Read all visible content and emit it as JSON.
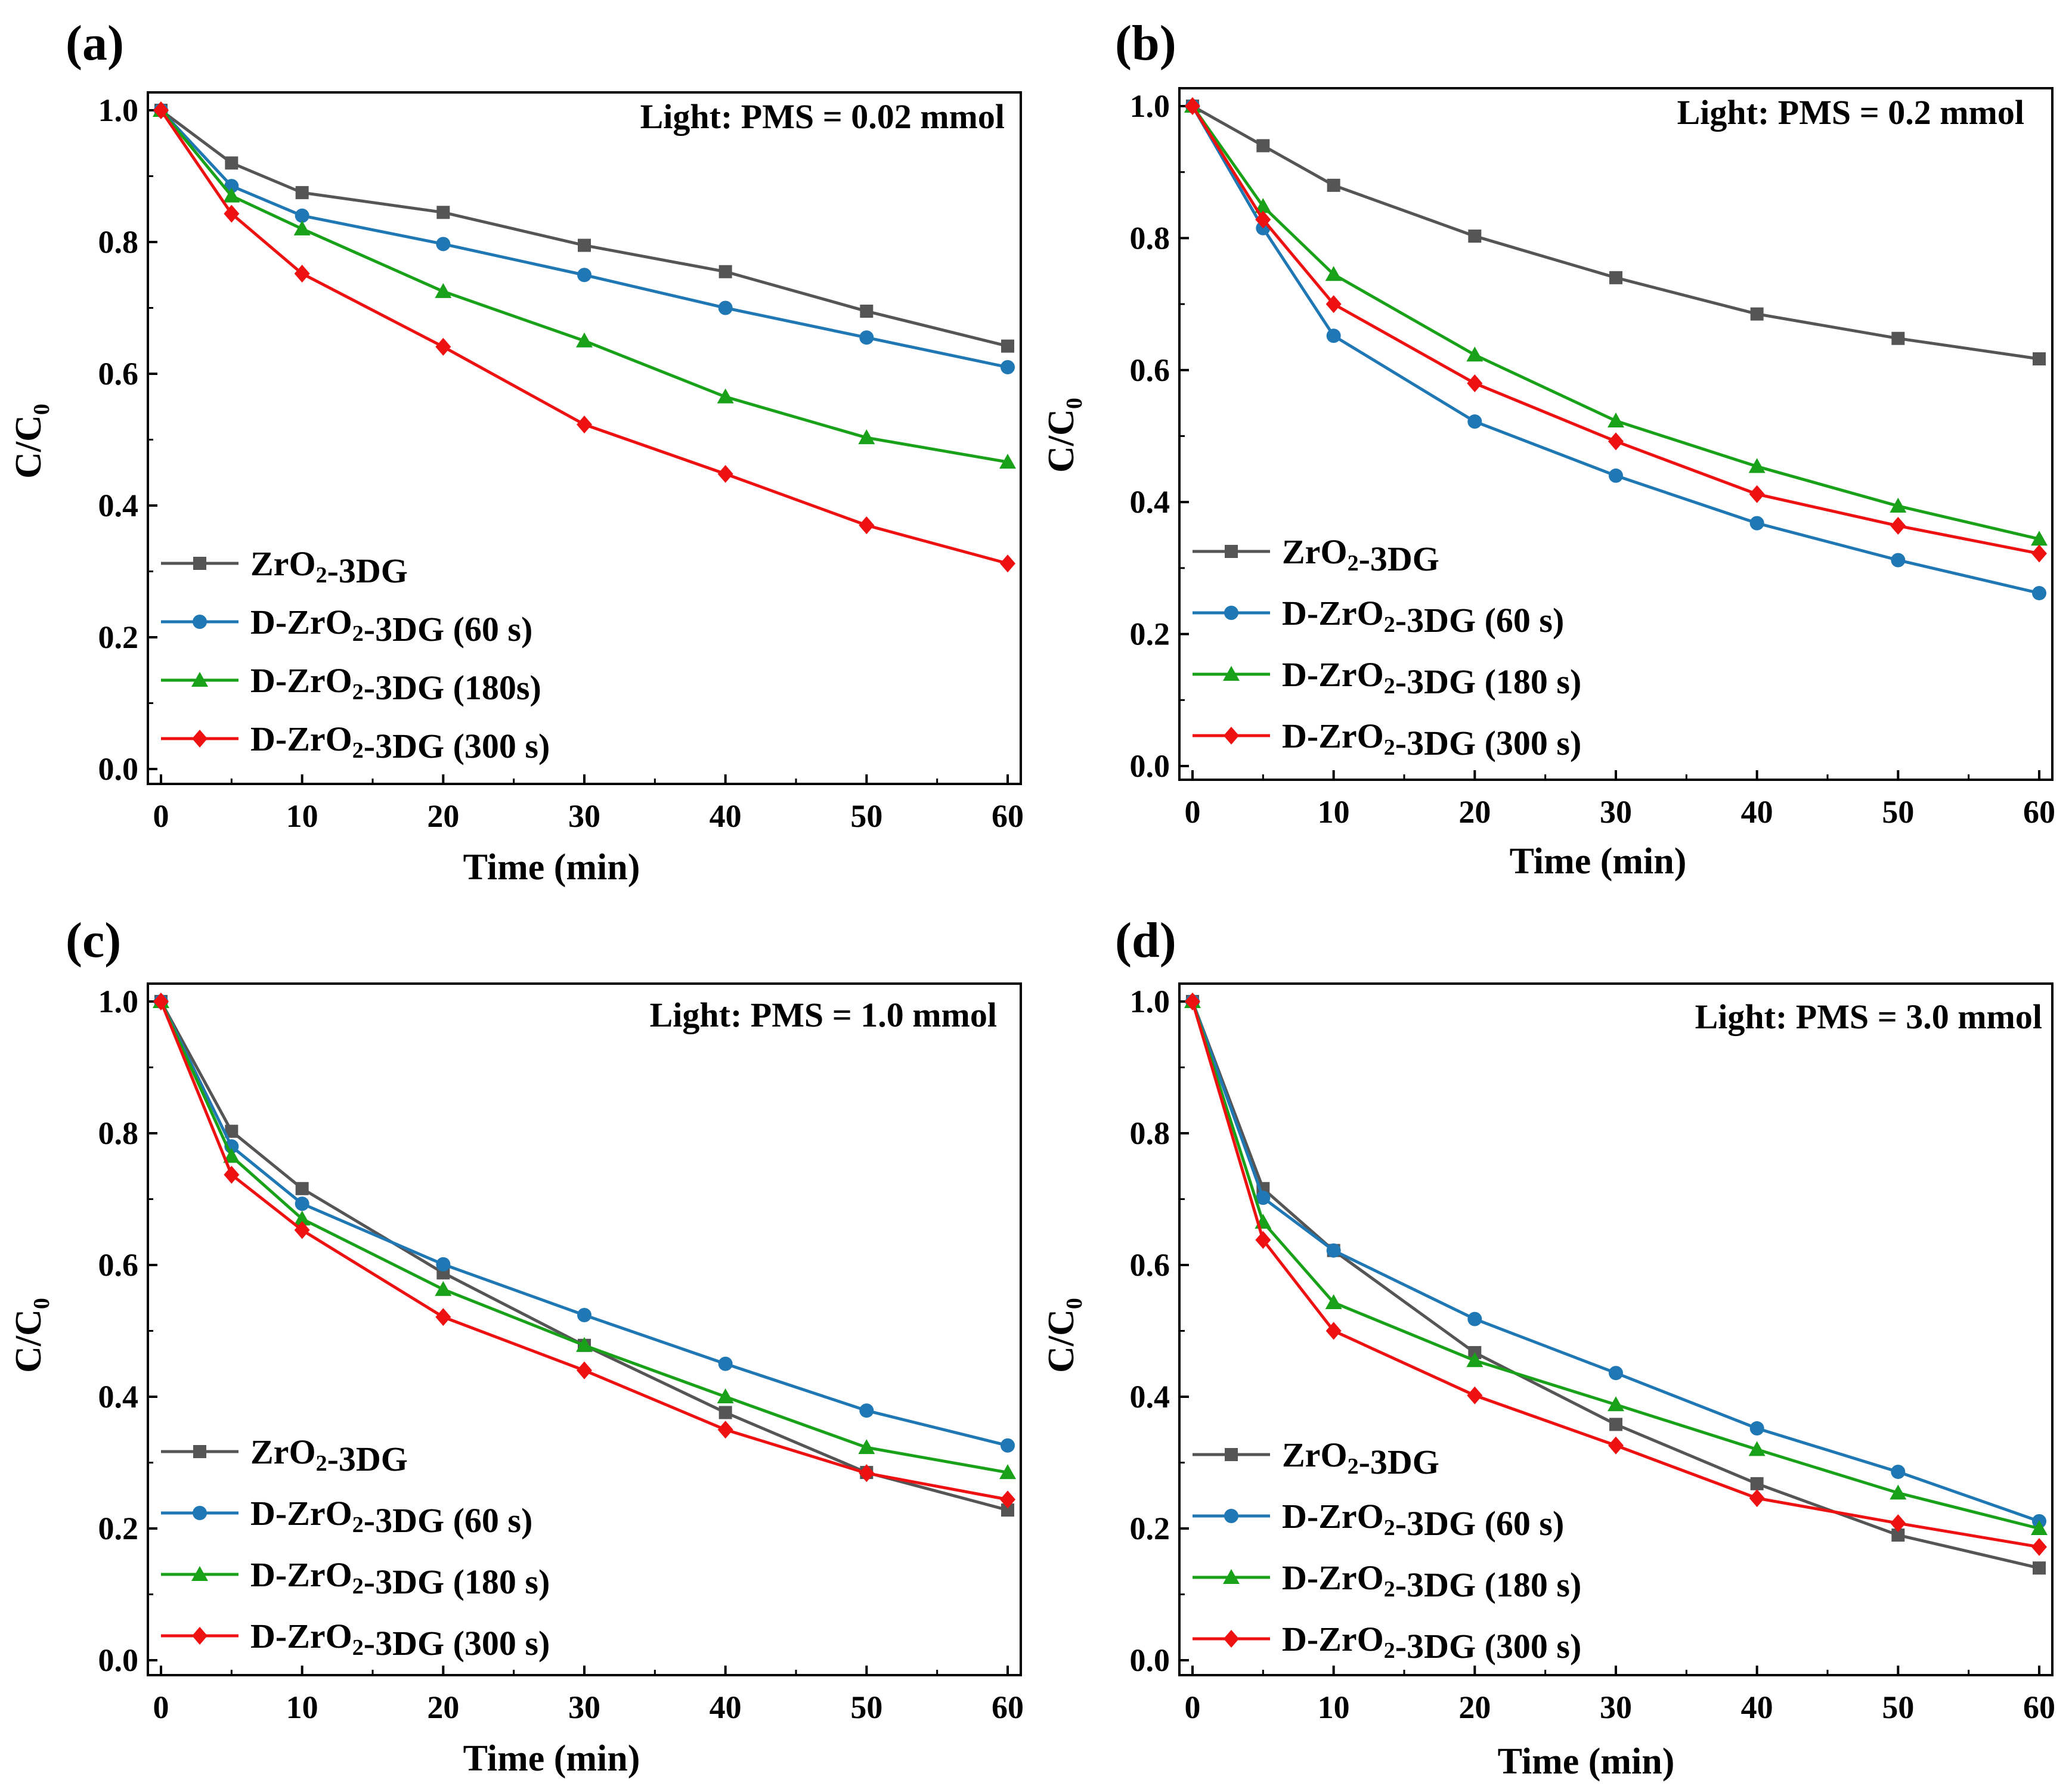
{
  "chart_data": [
    {
      "panel": "(a)",
      "type": "line",
      "annotation": "Light: PMS = 0.02 mmol",
      "xlabel": "Time (min)",
      "ylabel": "C/C0",
      "xlim": [
        0,
        60
      ],
      "ylim": [
        0.0,
        1.0
      ],
      "xticks": [
        "0",
        "10",
        "20",
        "30",
        "40",
        "50",
        "60"
      ],
      "yticks": [
        "0.0",
        "0.2",
        "0.4",
        "0.6",
        "0.8",
        "1.0"
      ],
      "x": [
        0,
        5,
        10,
        20,
        30,
        40,
        50,
        60
      ],
      "legend_position": "bottom-left",
      "series": [
        {
          "name": "ZrO2-3DG",
          "color": "#555555",
          "marker": "square",
          "values": [
            1.0,
            0.92,
            0.875,
            0.845,
            0.795,
            0.755,
            0.695,
            0.642
          ]
        },
        {
          "name": "D-ZrO2-3DG (60 s)",
          "color": "#1f77b4",
          "marker": "circle",
          "values": [
            1.0,
            0.885,
            0.84,
            0.797,
            0.75,
            0.7,
            0.655,
            0.61
          ]
        },
        {
          "name": "D-ZrO2-3DG (180s)",
          "color": "#1aa11a",
          "marker": "triangle",
          "values": [
            1.0,
            0.87,
            0.82,
            0.725,
            0.65,
            0.565,
            0.503,
            0.466
          ]
        },
        {
          "name": "D-ZrO2-3DG (300 s)",
          "color": "#ee1111",
          "marker": "diamond",
          "values": [
            1.0,
            0.843,
            0.752,
            0.641,
            0.523,
            0.448,
            0.37,
            0.312
          ]
        }
      ]
    },
    {
      "panel": "(b)",
      "type": "line",
      "annotation": "Light: PMS = 0.2 mmol",
      "xlabel": "Time (min)",
      "ylabel": "C/C0",
      "xlim": [
        0,
        60
      ],
      "ylim": [
        0.0,
        1.0
      ],
      "xticks": [
        "0",
        "10",
        "20",
        "30",
        "40",
        "50",
        "60"
      ],
      "yticks": [
        "0.0",
        "0.2",
        "0.4",
        "0.6",
        "0.8",
        "1.0"
      ],
      "x": [
        0,
        5,
        10,
        20,
        30,
        40,
        50,
        60
      ],
      "legend_position": "bottom-left",
      "series": [
        {
          "name": "ZrO2-3DG",
          "color": "#555555",
          "marker": "square",
          "values": [
            1.0,
            0.94,
            0.88,
            0.803,
            0.74,
            0.685,
            0.648,
            0.617
          ]
        },
        {
          "name": "D-ZrO2-3DG (60 s)",
          "color": "#1f77b4",
          "marker": "circle",
          "values": [
            1.0,
            0.815,
            0.652,
            0.522,
            0.44,
            0.368,
            0.312,
            0.262
          ]
        },
        {
          "name": "D-ZrO2-3DG (180 s)",
          "color": "#1aa11a",
          "marker": "triangle",
          "values": [
            1.0,
            0.848,
            0.745,
            0.623,
            0.523,
            0.454,
            0.394,
            0.344
          ]
        },
        {
          "name": "D-ZrO2-3DG  (300 s)",
          "color": "#ee1111",
          "marker": "diamond",
          "values": [
            1.0,
            0.828,
            0.7,
            0.58,
            0.492,
            0.412,
            0.364,
            0.322
          ]
        }
      ]
    },
    {
      "panel": "(c)",
      "type": "line",
      "annotation": "Light: PMS = 1.0  mmol",
      "xlabel": "Time (min)",
      "ylabel": "C/C0",
      "xlim": [
        0,
        60
      ],
      "ylim": [
        0.0,
        1.0
      ],
      "xticks": [
        "0",
        "10",
        "20",
        "30",
        "40",
        "50",
        "60"
      ],
      "yticks": [
        "0.0",
        "0.2",
        "0.4",
        "0.6",
        "0.8",
        "1.0"
      ],
      "x": [
        0,
        5,
        10,
        20,
        30,
        40,
        50,
        60
      ],
      "legend_position": "bottom-left",
      "series": [
        {
          "name": "ZrO2-3DG",
          "color": "#555555",
          "marker": "square",
          "values": [
            1.0,
            0.803,
            0.716,
            0.588,
            0.478,
            0.376,
            0.285,
            0.228
          ]
        },
        {
          "name": "D-ZrO2-3DG (60 s)",
          "color": "#1f77b4",
          "marker": "circle",
          "values": [
            1.0,
            0.78,
            0.693,
            0.601,
            0.524,
            0.45,
            0.379,
            0.326
          ]
        },
        {
          "name": "D-ZrO2-3DG (180 s)",
          "color": "#1aa11a",
          "marker": "triangle",
          "values": [
            1.0,
            0.765,
            0.67,
            0.563,
            0.478,
            0.4,
            0.323,
            0.285
          ]
        },
        {
          "name": "D-ZrO2-3DG  (300 s)",
          "color": "#ee1111",
          "marker": "diamond",
          "values": [
            1.0,
            0.737,
            0.653,
            0.521,
            0.44,
            0.35,
            0.284,
            0.244
          ]
        }
      ]
    },
    {
      "panel": "(d)",
      "type": "line",
      "annotation": "Light: PMS = 3.0 mmol",
      "xlabel": "Time (min)",
      "ylabel": "C/C0",
      "xlim": [
        0,
        60
      ],
      "ylim": [
        0.0,
        1.0
      ],
      "xticks": [
        "0",
        "10",
        "20",
        "30",
        "40",
        "50",
        "60"
      ],
      "yticks": [
        "0.0",
        "0.2",
        "0.4",
        "0.6",
        "0.8",
        "1.0"
      ],
      "x": [
        0,
        5,
        10,
        20,
        30,
        40,
        50,
        60
      ],
      "legend_position": "bottom-left",
      "series": [
        {
          "name": "ZrO2-3DG",
          "color": "#555555",
          "marker": "square",
          "values": [
            1.0,
            0.716,
            0.622,
            0.467,
            0.358,
            0.268,
            0.19,
            0.14
          ]
        },
        {
          "name": "D-ZrO2-3DG (60 s)",
          "color": "#1f77b4",
          "marker": "circle",
          "values": [
            1.0,
            0.702,
            0.622,
            0.518,
            0.436,
            0.352,
            0.286,
            0.211
          ]
        },
        {
          "name": "D-ZrO2-3DG (180 s)",
          "color": "#1aa11a",
          "marker": "triangle",
          "values": [
            1.0,
            0.665,
            0.543,
            0.455,
            0.388,
            0.32,
            0.254,
            0.2
          ]
        },
        {
          "name": "D-ZrO2-3DG  (300 s)",
          "color": "#ee1111",
          "marker": "diamond",
          "values": [
            1.0,
            0.638,
            0.5,
            0.402,
            0.326,
            0.246,
            0.208,
            0.172
          ]
        }
      ]
    }
  ]
}
